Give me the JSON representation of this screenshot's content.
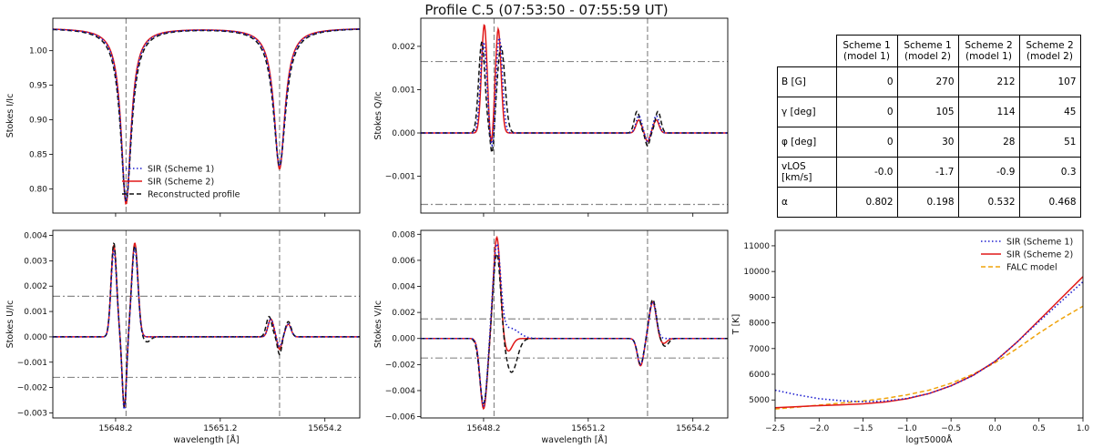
{
  "title": "Profile C.5 (07:53:50 - 07:55:59 UT)",
  "colors": {
    "scheme1": "#1f1fd0",
    "scheme2": "#e01818",
    "reconstructed": "#111111",
    "falc": "#f0a30a",
    "refline": "#8a8a8a"
  },
  "chart_data": [
    {
      "id": "stokes-I",
      "type": "line",
      "ylabel": "Stokes I/Ic",
      "xlabel": "",
      "xlim": [
        15646.4,
        15655.2
      ],
      "ylim": [
        0.765,
        1.047
      ],
      "xticks": [
        15648.2,
        15651.2,
        15654.2
      ],
      "yticks": [
        0.8,
        0.85,
        0.9,
        0.95,
        1.0
      ],
      "ytick_labels": [
        "0.80",
        "0.85",
        "0.90",
        "0.95",
        "1.00"
      ],
      "continuum": 1.033,
      "lines": [
        {
          "center": 15648.5,
          "depth": 0.25,
          "width": 0.18
        },
        {
          "center": 15652.9,
          "depth": 0.2,
          "width": 0.2
        }
      ],
      "reference_lines_x": [
        15648.5,
        15652.9
      ],
      "reference_lines_y": [],
      "legend": {
        "position": "lower-left",
        "entries": [
          "SIR (Scheme 1)",
          "SIR (Scheme 2)",
          "Reconstructed profile"
        ]
      }
    },
    {
      "id": "stokes-Q",
      "type": "line",
      "ylabel": "Stokes Q/Ic",
      "xlabel": "",
      "xlim": [
        15646.4,
        15655.2
      ],
      "ylim": [
        -0.00185,
        0.00265
      ],
      "xticks": [
        15648.2,
        15651.2,
        15654.2
      ],
      "yticks": [
        -0.001,
        0.0,
        0.001,
        0.002
      ],
      "ytick_labels": [
        "−0.001",
        "0.000",
        "0.001",
        "0.002"
      ],
      "reference_lines_x": [
        15648.5,
        15652.9
      ],
      "reference_lines_y": [
        0.00165,
        -0.00165
      ],
      "series": [
        {
          "name": "SIR (Scheme 1)",
          "components": [
            {
              "center": 15648.2,
              "amp": 0.0021,
              "width": 0.09
            },
            {
              "center": 15648.65,
              "amp": 0.0022,
              "width": 0.09
            },
            {
              "center": 15648.45,
              "amp": -0.0005,
              "width": 0.06
            },
            {
              "center": 15652.65,
              "amp": 0.0004,
              "width": 0.08
            },
            {
              "center": 15653.15,
              "amp": 0.0004,
              "width": 0.08
            },
            {
              "center": 15652.9,
              "amp": -0.0002,
              "width": 0.06
            }
          ]
        },
        {
          "name": "SIR (Scheme 2)",
          "components": [
            {
              "center": 15648.22,
              "amp": 0.0025,
              "width": 0.08
            },
            {
              "center": 15648.62,
              "amp": 0.0024,
              "width": 0.08
            },
            {
              "center": 15648.42,
              "amp": -0.0004,
              "width": 0.05
            },
            {
              "center": 15652.65,
              "amp": 0.0003,
              "width": 0.08
            },
            {
              "center": 15653.15,
              "amp": 0.0003,
              "width": 0.08
            },
            {
              "center": 15652.9,
              "amp": -0.0002,
              "width": 0.06
            }
          ]
        },
        {
          "name": "Reconstructed profile",
          "components": [
            {
              "center": 15648.15,
              "amp": 0.0021,
              "width": 0.09
            },
            {
              "center": 15648.7,
              "amp": 0.002,
              "width": 0.11
            },
            {
              "center": 15648.45,
              "amp": -0.0006,
              "width": 0.05
            },
            {
              "center": 15652.6,
              "amp": 0.0005,
              "width": 0.08
            },
            {
              "center": 15653.2,
              "amp": 0.0005,
              "width": 0.08
            },
            {
              "center": 15652.9,
              "amp": -0.0003,
              "width": 0.06
            }
          ]
        }
      ]
    },
    {
      "id": "stokes-U",
      "type": "line",
      "ylabel": "Stokes U/Ic",
      "xlabel": "wavelength [Å]",
      "xlim": [
        15646.4,
        15655.2
      ],
      "ylim": [
        -0.0032,
        0.0042
      ],
      "xticks": [
        15648.2,
        15651.2,
        15654.2
      ],
      "yticks": [
        -0.003,
        -0.002,
        -0.001,
        0.0,
        0.001,
        0.002,
        0.003,
        0.004
      ],
      "ytick_labels": [
        "−0.003",
        "−0.002",
        "−0.001",
        "0.000",
        "0.001",
        "0.002",
        "0.003",
        "0.004"
      ],
      "reference_lines_x": [
        15648.5,
        15652.9
      ],
      "reference_lines_y": [
        0.0016,
        -0.0016
      ],
      "series": [
        {
          "name": "SIR (Scheme 1)",
          "components": [
            {
              "center": 15648.15,
              "amp": 0.0034,
              "width": 0.08
            },
            {
              "center": 15648.75,
              "amp": 0.0035,
              "width": 0.09
            },
            {
              "center": 15648.45,
              "amp": -0.0029,
              "width": 0.06
            },
            {
              "center": 15652.65,
              "amp": 0.0007,
              "width": 0.08
            },
            {
              "center": 15653.15,
              "amp": 0.0005,
              "width": 0.08
            },
            {
              "center": 15652.9,
              "amp": -0.0004,
              "width": 0.06
            }
          ]
        },
        {
          "name": "SIR (Scheme 2)",
          "components": [
            {
              "center": 15648.15,
              "amp": 0.0036,
              "width": 0.08
            },
            {
              "center": 15648.75,
              "amp": 0.0037,
              "width": 0.09
            },
            {
              "center": 15648.45,
              "amp": -0.0028,
              "width": 0.06
            },
            {
              "center": 15652.65,
              "amp": 0.0007,
              "width": 0.08
            },
            {
              "center": 15653.15,
              "amp": 0.0005,
              "width": 0.08
            },
            {
              "center": 15652.9,
              "amp": -0.0005,
              "width": 0.06
            }
          ]
        },
        {
          "name": "Reconstructed profile",
          "components": [
            {
              "center": 15648.15,
              "amp": 0.0037,
              "width": 0.08
            },
            {
              "center": 15648.75,
              "amp": 0.0036,
              "width": 0.09
            },
            {
              "center": 15648.45,
              "amp": -0.0028,
              "width": 0.06
            },
            {
              "center": 15649.1,
              "amp": -0.0002,
              "width": 0.1
            },
            {
              "center": 15652.6,
              "amp": 0.0008,
              "width": 0.08
            },
            {
              "center": 15653.15,
              "amp": 0.0006,
              "width": 0.08
            },
            {
              "center": 15652.9,
              "amp": -0.0007,
              "width": 0.06
            }
          ]
        }
      ]
    },
    {
      "id": "stokes-V",
      "type": "line",
      "ylabel": "Stokes V/Ic",
      "xlabel": "wavelength [Å]",
      "xlim": [
        15646.4,
        15655.2
      ],
      "ylim": [
        -0.0061,
        0.0083
      ],
      "xticks": [
        15648.2,
        15651.2,
        15654.2
      ],
      "yticks": [
        -0.006,
        -0.004,
        -0.002,
        0.0,
        0.002,
        0.004,
        0.006,
        0.008
      ],
      "ytick_labels": [
        "−0.006",
        "−0.004",
        "−0.002",
        "0.000",
        "0.002",
        "0.004",
        "0.006",
        "0.008"
      ],
      "reference_lines_x": [
        15648.5,
        15652.9
      ],
      "reference_lines_y": [
        0.0015,
        -0.0015
      ],
      "series": [
        {
          "name": "SIR (Scheme 1)",
          "components": [
            {
              "center": 15648.2,
              "amp": -0.0052,
              "width": 0.1
            },
            {
              "center": 15648.58,
              "amp": 0.007,
              "width": 0.11
            },
            {
              "center": 15648.95,
              "amp": 0.0008,
              "width": 0.25
            },
            {
              "center": 15652.7,
              "amp": -0.002,
              "width": 0.09
            },
            {
              "center": 15653.05,
              "amp": 0.0028,
              "width": 0.1
            }
          ]
        },
        {
          "name": "SIR (Scheme 2)",
          "components": [
            {
              "center": 15648.2,
              "amp": -0.0054,
              "width": 0.1
            },
            {
              "center": 15648.58,
              "amp": 0.0078,
              "width": 0.1
            },
            {
              "center": 15648.9,
              "amp": -0.001,
              "width": 0.12
            },
            {
              "center": 15652.7,
              "amp": -0.0021,
              "width": 0.09
            },
            {
              "center": 15653.05,
              "amp": 0.0028,
              "width": 0.1
            },
            {
              "center": 15653.35,
              "amp": -0.0004,
              "width": 0.1
            }
          ]
        },
        {
          "name": "Reconstructed profile",
          "components": [
            {
              "center": 15648.2,
              "amp": -0.005,
              "width": 0.11
            },
            {
              "center": 15648.58,
              "amp": 0.0066,
              "width": 0.11
            },
            {
              "center": 15649.0,
              "amp": -0.0026,
              "width": 0.16
            },
            {
              "center": 15652.7,
              "amp": -0.002,
              "width": 0.09
            },
            {
              "center": 15653.05,
              "amp": 0.003,
              "width": 0.1
            },
            {
              "center": 15653.4,
              "amp": -0.0006,
              "width": 0.1
            }
          ]
        }
      ]
    },
    {
      "id": "temperature",
      "type": "line",
      "ylabel": "T [K]",
      "xlabel": "logτ5000Å",
      "xlim": [
        -2.5,
        1.0
      ],
      "ylim": [
        4300,
        11600
      ],
      "xticks": [
        -2.5,
        -2.0,
        -1.5,
        -1.0,
        -0.5,
        0.0,
        0.5,
        1.0
      ],
      "xtick_labels": [
        "−2.5",
        "−2.0",
        "−1.5",
        "−1.0",
        "−0.5",
        "0.0",
        "0.5",
        "1.0"
      ],
      "yticks": [
        5000,
        6000,
        7000,
        8000,
        9000,
        10000,
        11000
      ],
      "legend": {
        "position": "top-right",
        "entries": [
          "SIR (Scheme 1)",
          "SIR (Scheme 2)",
          "FALC model"
        ]
      },
      "series": [
        {
          "name": "SIR (Scheme 1)",
          "x": [
            -2.5,
            -2.25,
            -2.0,
            -1.75,
            -1.5,
            -1.25,
            -1.0,
            -0.75,
            -0.5,
            -0.25,
            0.0,
            0.25,
            0.5,
            0.75,
            1.0
          ],
          "y": [
            5380,
            5200,
            5050,
            4970,
            4930,
            4960,
            5060,
            5250,
            5550,
            5950,
            6500,
            7250,
            8050,
            8830,
            9600
          ]
        },
        {
          "name": "SIR (Scheme 2)",
          "x": [
            -2.5,
            -2.25,
            -2.0,
            -1.75,
            -1.5,
            -1.25,
            -1.0,
            -0.75,
            -0.5,
            -0.25,
            0.0,
            0.25,
            0.5,
            0.75,
            1.0
          ],
          "y": [
            4700,
            4740,
            4780,
            4810,
            4850,
            4920,
            5050,
            5250,
            5550,
            5960,
            6500,
            7250,
            8100,
            8950,
            9800
          ]
        },
        {
          "name": "FALC model",
          "x": [
            -2.5,
            -2.25,
            -2.0,
            -1.75,
            -1.5,
            -1.25,
            -1.0,
            -0.75,
            -0.5,
            -0.25,
            0.0,
            0.25,
            0.5,
            0.75,
            1.0
          ],
          "y": [
            4650,
            4720,
            4800,
            4880,
            4960,
            5060,
            5200,
            5380,
            5650,
            6000,
            6450,
            7000,
            7600,
            8150,
            8650
          ]
        }
      ]
    }
  ],
  "table": {
    "headers": [
      "Scheme 1\n(model 1)",
      "Scheme 1\n(model 2)",
      "Scheme 2\n(model 1)",
      "Scheme 2\n(model 2)"
    ],
    "rows": [
      {
        "label": "B [G]",
        "values": [
          "0",
          "270",
          "212",
          "107"
        ]
      },
      {
        "label": "γ [deg]",
        "values": [
          "0",
          "105",
          "114",
          "45"
        ]
      },
      {
        "label": "φ [deg]",
        "values": [
          "0",
          "30",
          "28",
          "51"
        ]
      },
      {
        "label": "vLOS [km/s]",
        "values": [
          "-0.0",
          "-1.7",
          "-0.9",
          "0.3"
        ]
      },
      {
        "label": "α",
        "values": [
          "0.802",
          "0.198",
          "0.532",
          "0.468"
        ]
      }
    ]
  }
}
